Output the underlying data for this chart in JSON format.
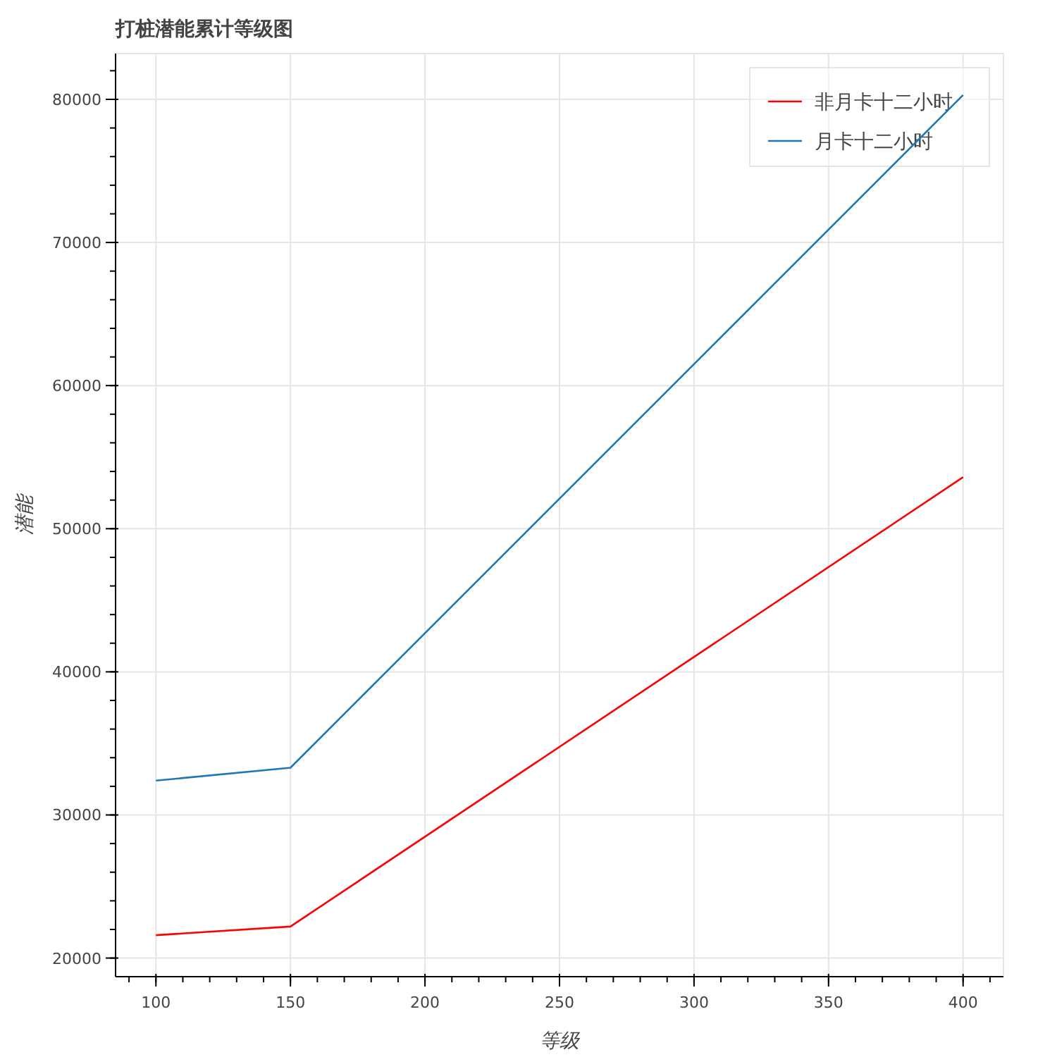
{
  "chart_data": {
    "type": "line",
    "title": "打桩潜能累计等级图",
    "xlabel": "等级",
    "ylabel": "潜能",
    "x": [
      100,
      150,
      400
    ],
    "series": [
      {
        "name": "非月卡十二小时",
        "color": "#ff0000",
        "values": [
          21600,
          22200,
          53600
        ]
      },
      {
        "name": "月卡十二小时",
        "color": "#1f77b4",
        "values": [
          32400,
          33300,
          80300
        ]
      }
    ],
    "xlim": [
      85,
      415
    ],
    "ylim": [
      18700,
      83200
    ],
    "xticks": [
      100,
      150,
      200,
      250,
      300,
      350,
      400
    ],
    "yticks": [
      20000,
      30000,
      40000,
      50000,
      60000,
      70000,
      80000
    ],
    "grid": true,
    "legend": "top right"
  }
}
